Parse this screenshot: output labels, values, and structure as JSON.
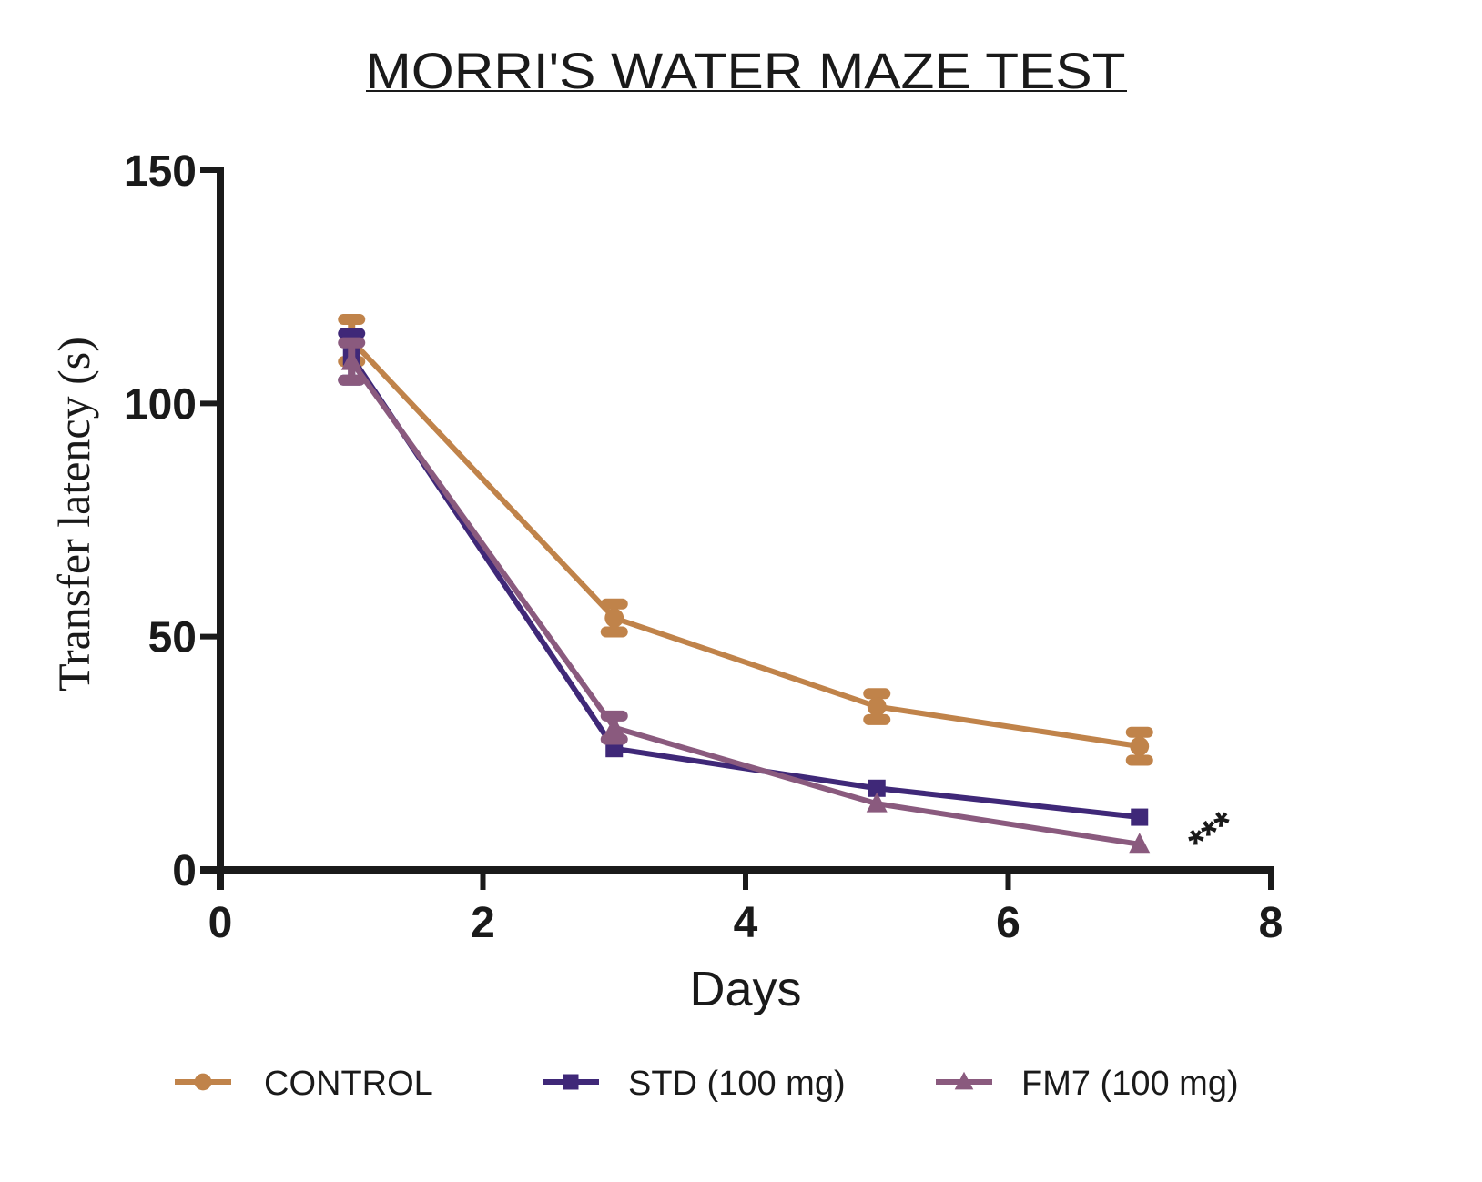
{
  "chart_data": {
    "type": "line",
    "title": "MORRI'S WATER MAZE TEST",
    "xlabel": "Days",
    "ylabel": "Transfer latency (s)",
    "xlim": [
      0,
      8
    ],
    "ylim": [
      0,
      150
    ],
    "xticks": [
      0,
      2,
      4,
      6,
      8
    ],
    "yticks": [
      0,
      50,
      100,
      150
    ],
    "grid": false,
    "legend_position": "bottom",
    "x": [
      1,
      3,
      5,
      7
    ],
    "series": [
      {
        "name": "CONTROL",
        "color": "#c0834a",
        "marker": "circle",
        "values": [
          113.5,
          54,
          35,
          26.5
        ],
        "errors": [
          4.5,
          3,
          2.8,
          3
        ]
      },
      {
        "name": "STD (100 mg)",
        "color": "#3f2878",
        "marker": "square",
        "values": [
          110,
          26,
          17.5,
          11.3
        ],
        "errors": [
          5,
          0,
          0,
          0
        ]
      },
      {
        "name": "FM7 (100 mg)",
        "color": "#8a5a7e",
        "marker": "triangle",
        "values": [
          109,
          30.5,
          14.2,
          5.5
        ],
        "errors": [
          4,
          2.5,
          0,
          0
        ]
      }
    ],
    "annotations": [
      {
        "text": "***",
        "x": 7.55,
        "y": 8,
        "rotation_deg": -35
      }
    ]
  }
}
